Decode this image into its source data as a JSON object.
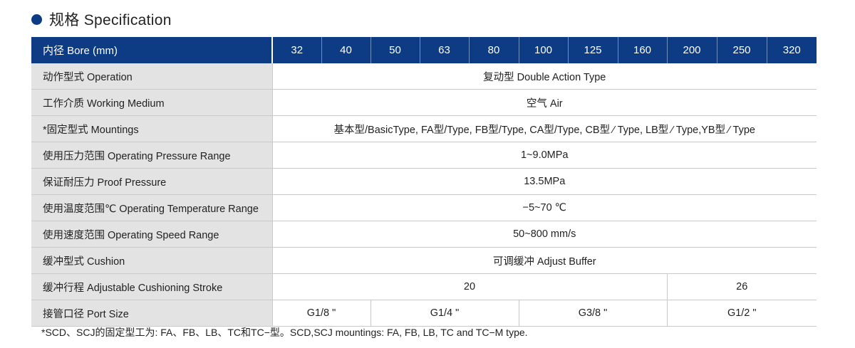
{
  "title": "规格 Specification",
  "table": {
    "header_label": "内径 Bore (mm)",
    "bores": [
      "32",
      "40",
      "50",
      "63",
      "80",
      "100",
      "125",
      "160",
      "200",
      "250",
      "320"
    ],
    "rows": {
      "operation": {
        "label": "动作型式 Operation",
        "value": "复动型  Double Action Type"
      },
      "medium": {
        "label": "工作介质 Working Medium",
        "value": "空气  Air"
      },
      "mountings": {
        "label": "*固定型式 Mountings",
        "value": "基本型/BasicType, FA型/Type, FB型/Type, CA型/Type, CB型 ⁄ Type,  LB型 ⁄ Type,YB型 ⁄ Type"
      },
      "pressure": {
        "label": "使用压力范围 Operating Pressure Range",
        "value": "1~9.0MPa"
      },
      "proof": {
        "label": "保证耐压力 Proof Pressure",
        "value": "13.5MPa"
      },
      "temperature": {
        "label": "使用温度范围℃ Operating Temperature Range",
        "value": "−5~70 ℃"
      },
      "speed": {
        "label": "使用速度范围 Operating Speed Range",
        "value": "50~800 mm/s"
      },
      "cushion": {
        "label": "缓冲型式 Cushion",
        "value": "可调缓冲  Adjust Buffer"
      },
      "stroke": {
        "label": "缓冲行程 Adjustable Cushioning Stroke",
        "values": [
          "20",
          "26"
        ]
      },
      "port": {
        "label": "接管口径 Port Size",
        "values": [
          "G1/8 \"",
          "G1/4 \"",
          "G3/8 \"",
          "G1/2 \""
        ]
      }
    }
  },
  "footnote": "*SCD、SCJ的固定型工为: FA、FB、LB、TC和TC−型。SCD,SCJ mountings: FA, FB, LB, TC and TC−M type."
}
